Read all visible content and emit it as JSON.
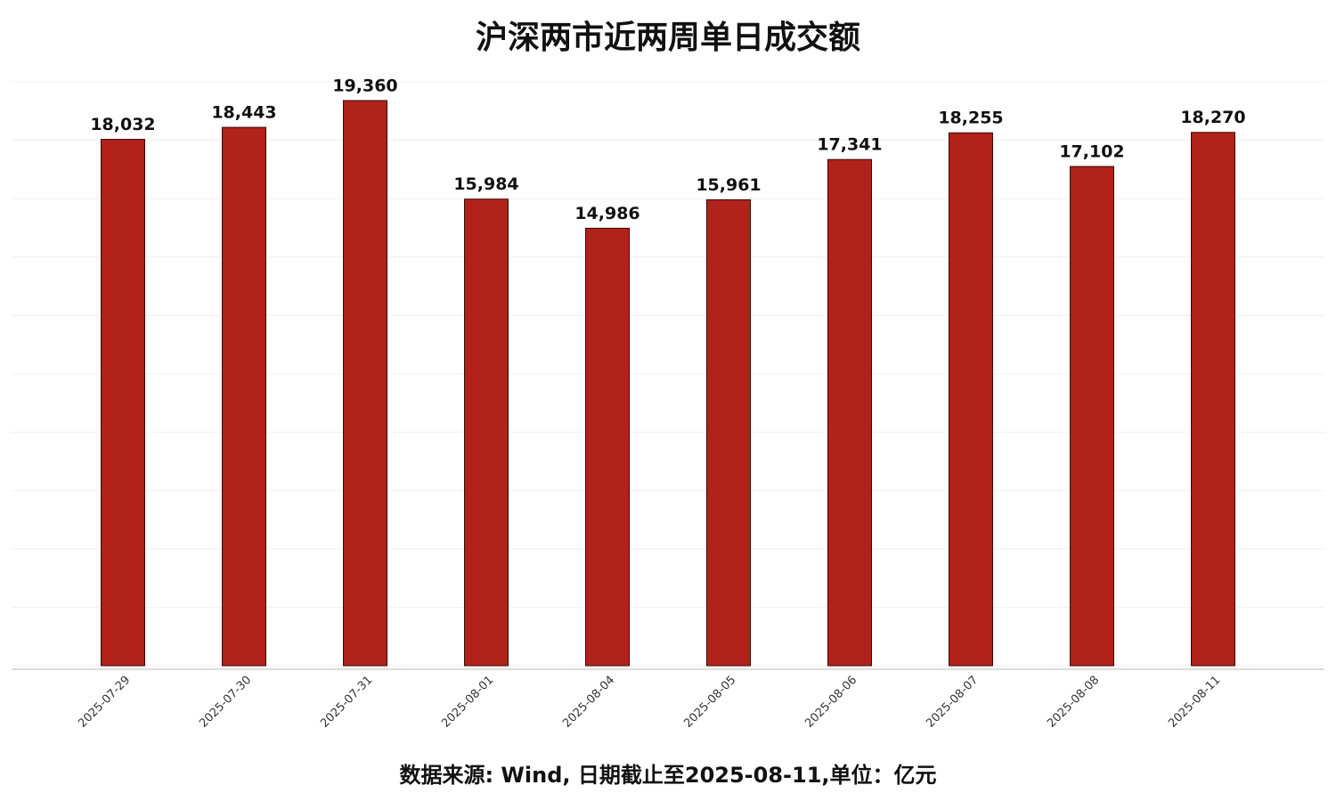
{
  "chart_data": {
    "type": "bar",
    "title": "沪深两市近两周单日成交额",
    "footer": "数据来源: Wind, 日期截止至2025-08-11,单位：亿元",
    "categories": [
      "2025-07-29",
      "2025-07-30",
      "2025-07-31",
      "2025-08-01",
      "2025-08-04",
      "2025-08-05",
      "2025-08-06",
      "2025-08-07",
      "2025-08-08",
      "2025-08-11"
    ],
    "values": [
      18032,
      18443,
      19360,
      15984,
      14986,
      15961,
      17341,
      18255,
      17102,
      18270
    ],
    "value_labels": [
      "18,032",
      "18,443",
      "19,360",
      "15,984",
      "14,986",
      "15,961",
      "17,341",
      "18,255",
      "17,102",
      "18,270"
    ],
    "color": "#b0221a",
    "ylim": [
      0,
      20000
    ],
    "yticks": [
      0,
      2000,
      4000,
      6000,
      8000,
      10000,
      12000,
      14000,
      16000,
      18000,
      20000
    ],
    "grid": true
  }
}
